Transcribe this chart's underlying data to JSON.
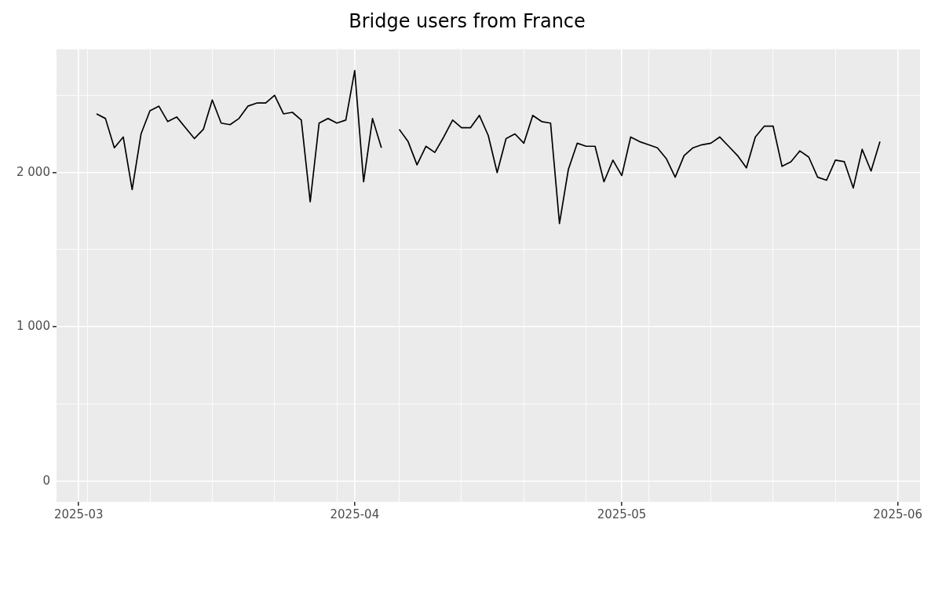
{
  "chart_data": {
    "type": "line",
    "title": "Bridge users from France",
    "x": [
      "2025-03-03",
      "2025-03-04",
      "2025-03-05",
      "2025-03-06",
      "2025-03-07",
      "2025-03-08",
      "2025-03-09",
      "2025-03-10",
      "2025-03-11",
      "2025-03-12",
      "2025-03-13",
      "2025-03-14",
      "2025-03-15",
      "2025-03-16",
      "2025-03-17",
      "2025-03-18",
      "2025-03-19",
      "2025-03-20",
      "2025-03-21",
      "2025-03-22",
      "2025-03-23",
      "2025-03-24",
      "2025-03-25",
      "2025-03-26",
      "2025-03-27",
      "2025-03-28",
      "2025-03-29",
      "2025-03-30",
      "2025-03-31",
      "2025-04-01",
      "2025-04-02",
      "2025-04-03",
      "2025-04-04",
      "2025-04-05",
      "2025-04-06",
      "2025-04-07",
      "2025-04-08",
      "2025-04-09",
      "2025-04-10",
      "2025-04-11",
      "2025-04-12",
      "2025-04-13",
      "2025-04-14",
      "2025-04-15",
      "2025-04-16",
      "2025-04-17",
      "2025-04-18",
      "2025-04-19",
      "2025-04-20",
      "2025-04-21",
      "2025-04-22",
      "2025-04-23",
      "2025-04-24",
      "2025-04-25",
      "2025-04-26",
      "2025-04-27",
      "2025-04-28",
      "2025-04-29",
      "2025-04-30",
      "2025-05-01",
      "2025-05-02",
      "2025-05-03",
      "2025-05-04",
      "2025-05-05",
      "2025-05-06",
      "2025-05-07",
      "2025-05-08",
      "2025-05-09",
      "2025-05-10",
      "2025-05-11",
      "2025-05-12",
      "2025-05-13",
      "2025-05-14",
      "2025-05-15",
      "2025-05-16",
      "2025-05-17",
      "2025-05-18",
      "2025-05-19",
      "2025-05-20",
      "2025-05-21",
      "2025-05-22",
      "2025-05-23",
      "2025-05-24",
      "2025-05-25",
      "2025-05-26",
      "2025-05-27",
      "2025-05-28",
      "2025-05-29",
      "2025-05-30"
    ],
    "series": [
      {
        "color": "#000000",
        "values": [
          2380,
          2350,
          2160,
          2230,
          1890,
          2250,
          2400,
          2430,
          2330,
          2360,
          2290,
          2220,
          2280,
          2470,
          2320,
          2310,
          2350,
          2430,
          2450,
          2450,
          2500,
          2380,
          2390,
          2340,
          1810,
          2320,
          2350,
          2320,
          2340,
          2660,
          1940,
          2350,
          2160,
          null,
          2280,
          2200,
          2050,
          2170,
          2130,
          2230,
          2340,
          2290,
          2290,
          2370,
          2240,
          2000,
          2220,
          2250,
          2190,
          2370,
          2330,
          2320,
          1670,
          2020,
          2190,
          2170,
          2170,
          1940,
          2080,
          1980,
          2230,
          2200,
          2180,
          2160,
          2090,
          1970,
          2110,
          2160,
          2180,
          2190,
          2230,
          2170,
          2110,
          2030,
          2230,
          2300,
          2300,
          2040,
          2070,
          2140,
          2100,
          1970,
          1950,
          2080,
          2070,
          1900,
          2150,
          2010,
          2200
        ]
      }
    ],
    "xlim": [
      "2025-02-26T12:00",
      "2025-06-03T12:00"
    ],
    "xticks": [
      {
        "value": "2025-03-01",
        "label": "2025-03"
      },
      {
        "value": "2025-03-02",
        "label": null
      },
      {
        "value": "2025-03-09",
        "label": null
      },
      {
        "value": "2025-03-16",
        "label": null
      },
      {
        "value": "2025-03-23",
        "label": null
      },
      {
        "value": "2025-03-30",
        "label": null
      },
      {
        "value": "2025-04-01",
        "label": "2025-04"
      },
      {
        "value": "2025-04-06",
        "label": null
      },
      {
        "value": "2025-04-13",
        "label": null
      },
      {
        "value": "2025-04-20",
        "label": null
      },
      {
        "value": "2025-04-27",
        "label": null
      },
      {
        "value": "2025-05-01",
        "label": "2025-05"
      },
      {
        "value": "2025-05-04",
        "label": null
      },
      {
        "value": "2025-05-11",
        "label": null
      },
      {
        "value": "2025-05-18",
        "label": null
      },
      {
        "value": "2025-05-25",
        "label": null
      },
      {
        "value": "2025-06-01",
        "label": "2025-06"
      }
    ],
    "ylim": [
      -133,
      2798
    ],
    "yticks": [
      0,
      {
        "value": 500,
        "label": null
      },
      {
        "value": 1000,
        "label": "1 000"
      },
      {
        "value": 1500,
        "label": null
      },
      {
        "value": 2000,
        "label": "2 000"
      },
      {
        "value": 2500,
        "label": null
      }
    ],
    "grid": true,
    "legend": false,
    "marker": "none",
    "line_style": "solid"
  }
}
